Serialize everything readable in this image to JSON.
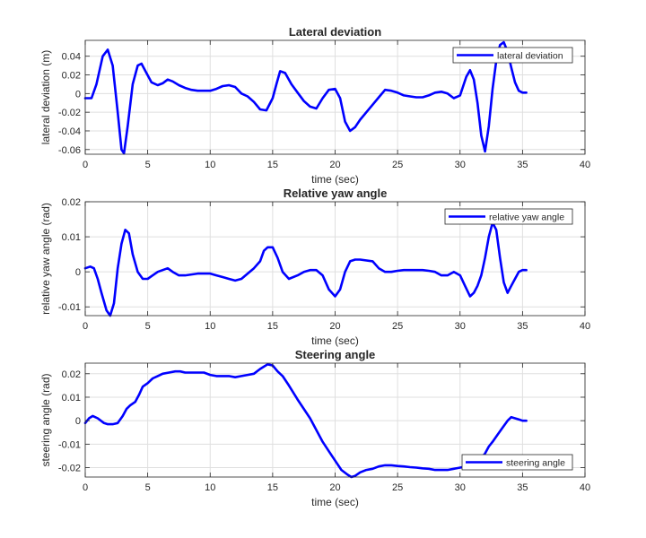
{
  "chart_data": [
    {
      "type": "line",
      "title": "Lateral deviation",
      "xlabel": "time (sec)",
      "ylabel": "lateral deviation (m)",
      "xlim": [
        0,
        40
      ],
      "ylim": [
        -0.065,
        0.057
      ],
      "xticks": [
        0,
        5,
        10,
        15,
        20,
        25,
        30,
        35,
        40
      ],
      "yticks": [
        -0.06,
        -0.04,
        -0.02,
        0,
        0.02,
        0.04
      ],
      "yticklabels": [
        "-0.06",
        "-0.04",
        "-0.02",
        "0",
        "0.02",
        "0.04"
      ],
      "grid": true,
      "legend_position": "top-right",
      "color": "#0000ff",
      "series": [
        {
          "name": "lateral deviation",
          "x": [
            0,
            0.5,
            0.9,
            1.4,
            1.8,
            2.2,
            2.6,
            2.9,
            3.1,
            3.4,
            3.8,
            4.2,
            4.5,
            4.9,
            5.3,
            5.8,
            6.2,
            6.6,
            7.0,
            7.5,
            8,
            8.5,
            9,
            9.5,
            10,
            10.5,
            11,
            11.5,
            12,
            12.5,
            13,
            13.5,
            14,
            14.5,
            15,
            15.3,
            15.6,
            16,
            16.5,
            17,
            17.5,
            18,
            18.5,
            19,
            19.5,
            20,
            20.4,
            20.8,
            21.2,
            21.6,
            22,
            22.5,
            23,
            23.5,
            24,
            24.5,
            25,
            25.5,
            26,
            26.5,
            27,
            27.5,
            28,
            28.5,
            29,
            29.5,
            30,
            30.5,
            30.8,
            31.1,
            31.4,
            31.7,
            32,
            32.3,
            32.6,
            32.9,
            33.2,
            33.5,
            33.8,
            34.1,
            34.4,
            34.7,
            35.0,
            35.3
          ],
          "y": [
            -0.005,
            -0.005,
            0.01,
            0.04,
            0.047,
            0.03,
            -0.02,
            -0.06,
            -0.064,
            -0.035,
            0.01,
            0.03,
            0.032,
            0.022,
            0.012,
            0.009,
            0.011,
            0.015,
            0.013,
            0.009,
            0.006,
            0.004,
            0.003,
            0.003,
            0.003,
            0.005,
            0.008,
            0.009,
            0.007,
            0,
            -0.003,
            -0.009,
            -0.017,
            -0.018,
            -0.005,
            0.01,
            0.024,
            0.022,
            0.01,
            0.001,
            -0.008,
            -0.014,
            -0.016,
            -0.005,
            0.004,
            0.005,
            -0.005,
            -0.03,
            -0.04,
            -0.036,
            -0.028,
            -0.02,
            -0.012,
            -0.004,
            0.004,
            0.003,
            0.001,
            -0.002,
            -0.003,
            -0.004,
            -0.004,
            -0.002,
            0.001,
            0.002,
            0,
            -0.005,
            -0.002,
            0.018,
            0.025,
            0.015,
            -0.01,
            -0.045,
            -0.062,
            -0.035,
            0.005,
            0.035,
            0.052,
            0.055,
            0.045,
            0.028,
            0.012,
            0.003,
            0.001,
            0.001
          ]
        }
      ]
    },
    {
      "type": "line",
      "title": "Relative yaw angle",
      "xlabel": "time (sec)",
      "ylabel": "relative yaw angle (rad)",
      "xlim": [
        0,
        40
      ],
      "ylim": [
        -0.0125,
        0.02
      ],
      "xticks": [
        0,
        5,
        10,
        15,
        20,
        25,
        30,
        35,
        40
      ],
      "yticks": [
        -0.01,
        0,
        0.01,
        0.02
      ],
      "yticklabels": [
        "-0.01",
        "0",
        "0.01",
        "0.02"
      ],
      "grid": true,
      "legend_position": "top-right",
      "color": "#0000ff",
      "series": [
        {
          "name": "relative yaw angle",
          "x": [
            0,
            0.4,
            0.7,
            1.0,
            1.3,
            1.7,
            2.0,
            2.3,
            2.6,
            2.9,
            3.2,
            3.5,
            3.8,
            4.2,
            4.6,
            5.0,
            5.4,
            5.8,
            6.2,
            6.6,
            7.0,
            7.5,
            8,
            9,
            10,
            10.5,
            11,
            11.5,
            12,
            12.5,
            13,
            13.5,
            14,
            14.3,
            14.6,
            15,
            15.4,
            15.8,
            16.3,
            17,
            17.5,
            18,
            18.5,
            19,
            19.5,
            20,
            20.4,
            20.8,
            21.2,
            21.6,
            22,
            23,
            23.5,
            24,
            24.5,
            25,
            25.5,
            26,
            26.5,
            27,
            27.5,
            28,
            28.5,
            29,
            29.5,
            30,
            30.4,
            30.8,
            31.1,
            31.4,
            31.7,
            32,
            32.3,
            32.6,
            32.9,
            33.2,
            33.5,
            33.8,
            34.1,
            34.4,
            34.7,
            35.0,
            35.3
          ],
          "y": [
            0.001,
            0.0015,
            0.001,
            -0.002,
            -0.006,
            -0.011,
            -0.0125,
            -0.009,
            0.001,
            0.008,
            0.012,
            0.011,
            0.005,
            0,
            -0.002,
            -0.002,
            -0.001,
            0,
            0.0005,
            0.001,
            0,
            -0.001,
            -0.001,
            -0.0005,
            -0.0005,
            -0.001,
            -0.0015,
            -0.002,
            -0.0025,
            -0.002,
            -0.0005,
            0.001,
            0.003,
            0.006,
            0.007,
            0.007,
            0.004,
            0,
            -0.002,
            -0.001,
            0,
            0.0005,
            0.0005,
            -0.001,
            -0.005,
            -0.007,
            -0.005,
            0,
            0.003,
            0.0035,
            0.0035,
            0.003,
            0.001,
            0,
            0,
            0.0003,
            0.0005,
            0.0005,
            0.0005,
            0.0005,
            0.0003,
            0,
            -0.001,
            -0.001,
            0,
            -0.001,
            -0.004,
            -0.007,
            -0.006,
            -0.004,
            -0.001,
            0.004,
            0.01,
            0.014,
            0.012,
            0.004,
            -0.003,
            -0.006,
            -0.004,
            -0.002,
            0,
            0.0005,
            0.0005
          ]
        }
      ]
    },
    {
      "type": "line",
      "title": "Steering angle",
      "xlabel": "time (sec)",
      "ylabel": "steering angle (rad)",
      "xlim": [
        0,
        40
      ],
      "ylim": [
        -0.024,
        0.0245
      ],
      "xticks": [
        0,
        5,
        10,
        15,
        20,
        25,
        30,
        35,
        40
      ],
      "yticks": [
        -0.02,
        -0.01,
        0,
        0.01,
        0.02
      ],
      "yticklabels": [
        "-0.02",
        "-0.01",
        "0",
        "0.01",
        "0.02"
      ],
      "grid": true,
      "legend_position": "bottom-right",
      "color": "#0000ff",
      "series": [
        {
          "name": "steering angle",
          "x": [
            0,
            0.3,
            0.6,
            1.0,
            1.5,
            1.8,
            2.2,
            2.6,
            3.0,
            3.3,
            3.6,
            4.0,
            4.3,
            4.6,
            5.0,
            5.4,
            5.8,
            6.2,
            6.7,
            7.2,
            7.6,
            8,
            8.5,
            9,
            9.5,
            10,
            10.5,
            11,
            11.5,
            12,
            12.5,
            13,
            13.5,
            14,
            14.3,
            14.6,
            15,
            15.4,
            15.8,
            16.3,
            17,
            17.5,
            18,
            18.5,
            19,
            19.5,
            20,
            20.5,
            21,
            21.3,
            21.6,
            22,
            22.5,
            23,
            23.5,
            24,
            24.5,
            25,
            25.5,
            26,
            26.5,
            27,
            27.5,
            28,
            28.5,
            29,
            29.5,
            30,
            30.5,
            31,
            31.5,
            32,
            32.3,
            32.6,
            33,
            33.4,
            33.8,
            34.1,
            34.4,
            34.7,
            35.0,
            35.3
          ],
          "y": [
            -0.001,
            0.001,
            0.002,
            0.001,
            -0.001,
            -0.0015,
            -0.0015,
            -0.001,
            0.002,
            0.005,
            0.0065,
            0.008,
            0.011,
            0.0145,
            0.016,
            0.018,
            0.019,
            0.02,
            0.0205,
            0.021,
            0.021,
            0.0205,
            0.0205,
            0.0205,
            0.0205,
            0.0195,
            0.019,
            0.019,
            0.019,
            0.0185,
            0.019,
            0.0195,
            0.02,
            0.022,
            0.023,
            0.024,
            0.0235,
            0.021,
            0.019,
            0.015,
            0.009,
            0.005,
            0.001,
            -0.004,
            -0.009,
            -0.013,
            -0.017,
            -0.021,
            -0.023,
            -0.024,
            -0.0235,
            -0.022,
            -0.021,
            -0.0205,
            -0.0195,
            -0.019,
            -0.019,
            -0.0193,
            -0.0195,
            -0.0198,
            -0.02,
            -0.0203,
            -0.0205,
            -0.021,
            -0.021,
            -0.021,
            -0.0205,
            -0.02,
            -0.0195,
            -0.0185,
            -0.017,
            -0.014,
            -0.011,
            -0.009,
            -0.006,
            -0.003,
            0,
            0.0015,
            0.001,
            0.0005,
            0,
            0
          ]
        }
      ]
    }
  ]
}
